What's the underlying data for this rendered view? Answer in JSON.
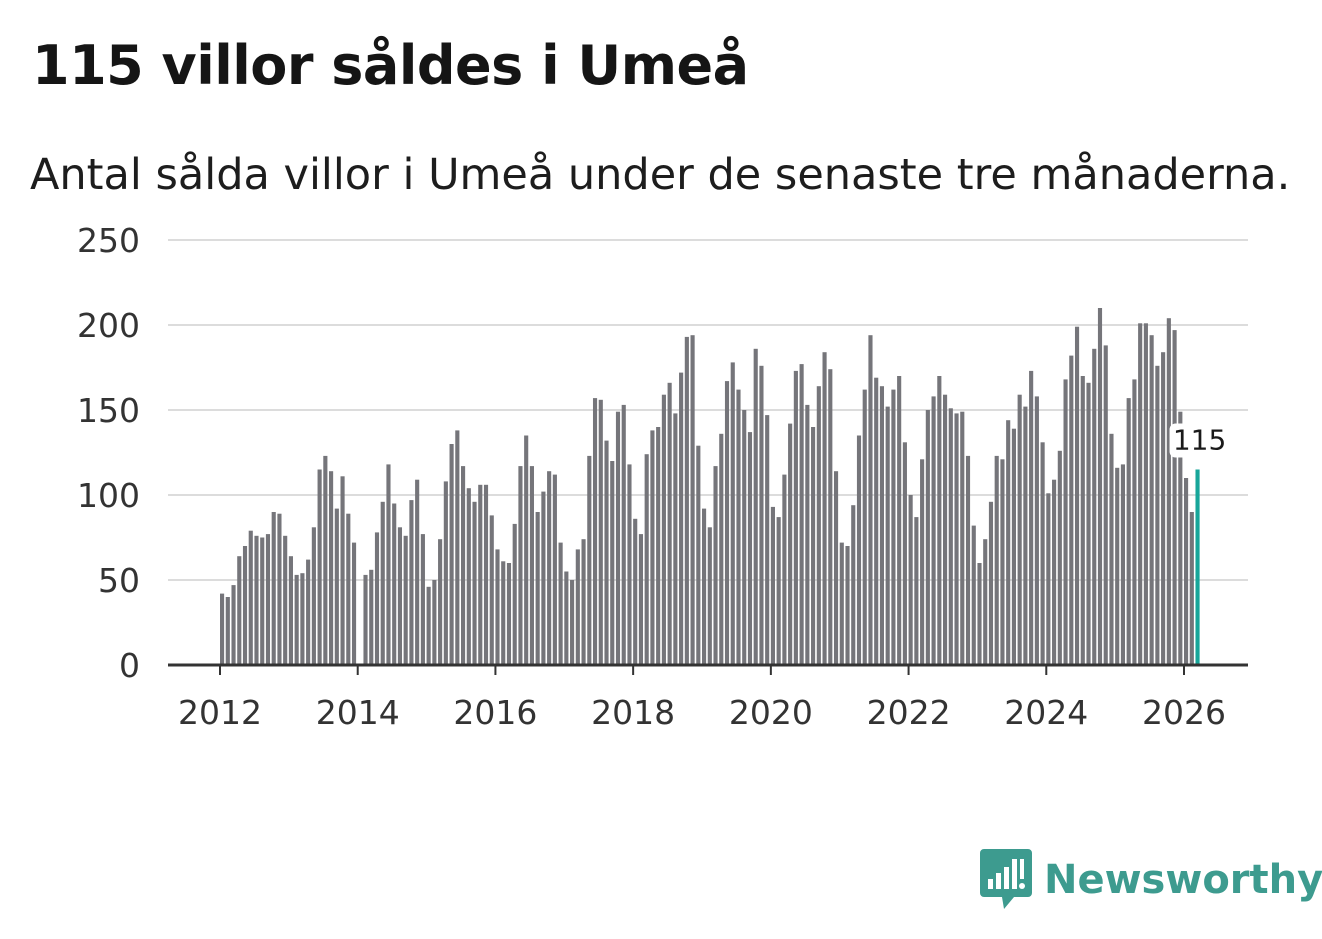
{
  "title": "115 villor såldes i Umeå",
  "subtitle": "Antal sålda villor i Umeå under de senaste tre månaderna.",
  "brand": {
    "name": "Newsworthy",
    "color": "#3d9b8f",
    "icon": "newsworthy-logo-icon"
  },
  "colors": {
    "bar": "#75757a",
    "highlight": "#17a69a",
    "grid": "#dcdcdc",
    "axis": "#333333"
  },
  "chart_data": {
    "type": "bar",
    "title": "115 villor såldes i Umeå",
    "xlabel": "",
    "ylabel": "",
    "ylim": [
      0,
      250
    ],
    "yticks": [
      0,
      50,
      100,
      150,
      200,
      250
    ],
    "xticks": [
      2012,
      2014,
      2016,
      2018,
      2020,
      2022,
      2024,
      2026
    ],
    "start": "2012-01",
    "x_step": "month",
    "highlight_label": "115",
    "values": [
      42,
      40,
      47,
      64,
      70,
      79,
      76,
      75,
      77,
      90,
      89,
      76,
      64,
      53,
      54,
      62,
      81,
      115,
      123,
      114,
      92,
      111,
      89,
      72,
      0,
      53,
      56,
      78,
      96,
      118,
      95,
      81,
      76,
      97,
      109,
      77,
      46,
      50,
      74,
      108,
      130,
      138,
      117,
      104,
      96,
      106,
      106,
      88,
      68,
      61,
      60,
      83,
      117,
      135,
      117,
      90,
      102,
      114,
      112,
      72,
      55,
      50,
      68,
      74,
      123,
      157,
      156,
      132,
      120,
      149,
      153,
      118,
      86,
      77,
      124,
      138,
      140,
      159,
      166,
      148,
      172,
      193,
      194,
      129,
      92,
      81,
      117,
      136,
      167,
      178,
      162,
      150,
      137,
      186,
      176,
      147,
      93,
      87,
      112,
      142,
      173,
      177,
      153,
      140,
      164,
      184,
      174,
      114,
      72,
      70,
      94,
      135,
      162,
      194,
      169,
      164,
      152,
      162,
      170,
      131,
      100,
      87,
      121,
      150,
      158,
      170,
      159,
      151,
      148,
      149,
      123,
      82,
      60,
      74,
      96,
      123,
      121,
      144,
      139,
      159,
      152,
      173,
      158,
      131,
      101,
      109,
      126,
      168,
      182,
      199,
      170,
      166,
      186,
      210,
      188,
      136,
      116,
      118,
      157,
      168,
      201,
      201,
      194,
      176,
      184,
      204,
      197,
      149,
      110,
      90,
      115
    ]
  }
}
